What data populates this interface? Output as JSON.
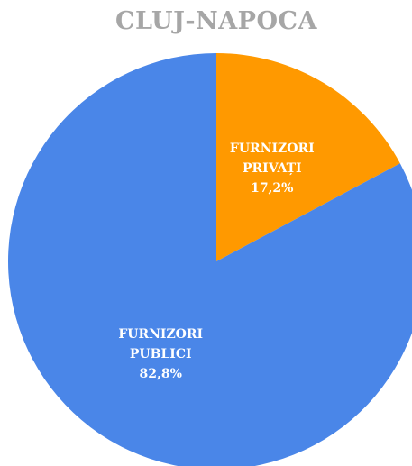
{
  "chart_data": {
    "type": "pie",
    "title": "CLUJ-NAPOCA",
    "categories": [
      "FURNIZORI PRIVAȚI",
      "FURNIZORI PUBLICI"
    ],
    "values": [
      17.2,
      82.8
    ],
    "value_labels": [
      "17,2%",
      "82,8%"
    ],
    "colors": [
      "#ff9900",
      "#4a86e8"
    ]
  }
}
